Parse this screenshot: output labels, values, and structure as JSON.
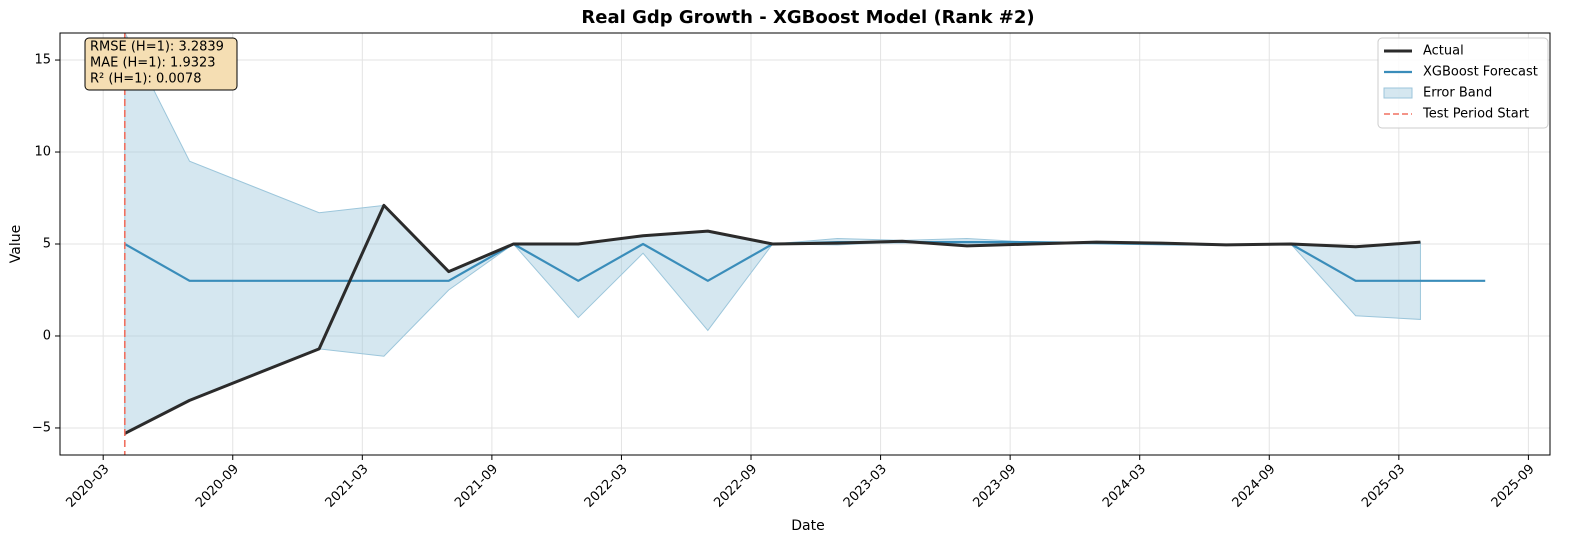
{
  "chart_data": {
    "type": "line",
    "title": "Real Gdp Growth - XGBoost Model (Rank #2)",
    "x_label": "Date",
    "y_label": "Value",
    "x": [
      "2020-04",
      "2020-07",
      "2020-10",
      "2021-01",
      "2021-04",
      "2021-07",
      "2021-10",
      "2022-01",
      "2022-04",
      "2022-07",
      "2022-10",
      "2023-01",
      "2023-04",
      "2023-07",
      "2023-10",
      "2024-01",
      "2024-04",
      "2024-07",
      "2024-10",
      "2025-01",
      "2025-04",
      "2025-07"
    ],
    "series": [
      {
        "name": "Actual",
        "color": "#2b2b2b",
        "values": [
          -5.3,
          -3.5,
          -2.1,
          -0.7,
          7.1,
          3.5,
          5.0,
          5.0,
          5.45,
          5.7,
          5.0,
          5.05,
          5.15,
          4.9,
          5.0,
          5.1,
          5.05,
          4.95,
          5.0,
          4.85,
          5.1,
          null
        ]
      },
      {
        "name": "XGBoost Forecast",
        "color": "#3a8dba",
        "values": [
          5.0,
          3.0,
          3.0,
          3.0,
          3.0,
          3.0,
          5.0,
          3.0,
          5.0,
          3.0,
          5.0,
          5.1,
          5.1,
          5.1,
          5.1,
          5.05,
          5.0,
          4.95,
          5.0,
          3.0,
          3.0,
          3.0
        ]
      }
    ],
    "band": {
      "name": "Error Band",
      "color": "#9cc6db",
      "upper": [
        16.5,
        9.5,
        8.1,
        6.7,
        7.1,
        3.5,
        5.0,
        5.0,
        5.45,
        5.7,
        5.0,
        5.3,
        5.2,
        5.3,
        5.1,
        5.1,
        5.05,
        4.95,
        5.0,
        4.9,
        5.1,
        null
      ],
      "lower": [
        -5.3,
        -3.5,
        -2.1,
        -0.7,
        -1.1,
        2.5,
        5.0,
        1.0,
        4.5,
        0.3,
        5.0,
        4.95,
        5.1,
        4.9,
        5.0,
        5.0,
        4.95,
        4.95,
        5.0,
        1.1,
        0.9,
        null
      ]
    },
    "test_start": {
      "name": "Test Period Start",
      "x": "2020-04",
      "color": "#f07060"
    },
    "annotations": [
      "RMSE (H=1): 3.2839",
      "MAE (H=1): 1.9323",
      "R² (H=1): 0.0078"
    ],
    "xlim": [
      "2020-01",
      "2025-10"
    ],
    "xticks": [
      "2020-03",
      "2020-09",
      "2021-03",
      "2021-09",
      "2022-03",
      "2022-09",
      "2023-03",
      "2023-09",
      "2024-03",
      "2024-09",
      "2025-03",
      "2025-09"
    ],
    "ylim": [
      -6.47,
      16.47
    ],
    "yticks": [
      {
        "value": -5,
        "label": "−5"
      },
      0,
      5,
      10,
      15
    ],
    "grid": true,
    "legend": "upper right"
  }
}
